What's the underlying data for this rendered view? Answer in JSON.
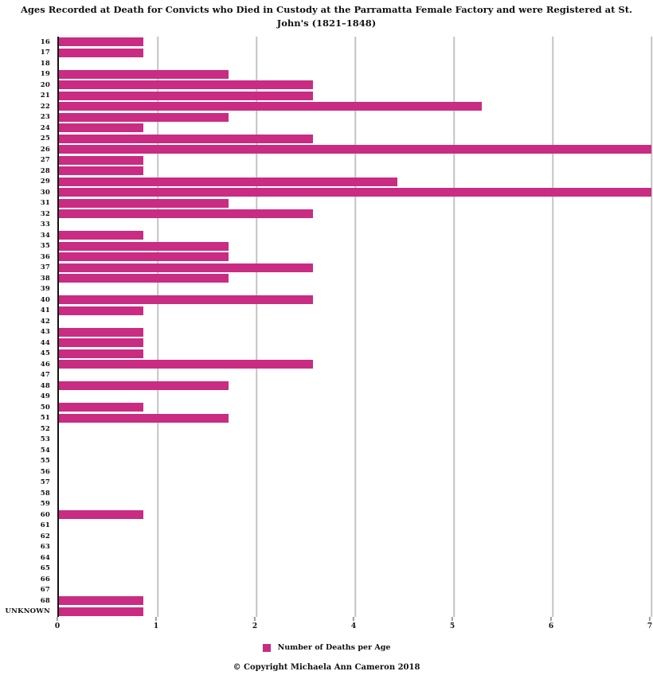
{
  "header": {
    "title_line1": "Ages Recorded at Death for Convicts who Died in Custody at the Parramatta Female Factory and were Registered at St.",
    "title_line2": "John's (1821–1848)"
  },
  "chart_data": {
    "type": "bar",
    "orientation": "horizontal",
    "title": "Ages Recorded at Death for Convicts who Died in Custody at the Parramatta Female Factory and were Registered at St. John's (1821–1848)",
    "series_name": "Number of Deaths per Age",
    "categories": [
      "16",
      "17",
      "18",
      "19",
      "20",
      "21",
      "22",
      "23",
      "24",
      "25",
      "26",
      "27",
      "28",
      "29",
      "30",
      "31",
      "32",
      "33",
      "34",
      "35",
      "36",
      "37",
      "38",
      "39",
      "40",
      "41",
      "42",
      "43",
      "44",
      "45",
      "46",
      "47",
      "48",
      "49",
      "50",
      "51",
      "52",
      "53",
      "54",
      "55",
      "56",
      "57",
      "58",
      "59",
      "60",
      "61",
      "62",
      "63",
      "64",
      "65",
      "66",
      "67",
      "68",
      "UNKNOWN"
    ],
    "values": [
      1,
      1,
      0,
      2,
      3,
      3,
      5,
      2,
      1,
      3,
      7,
      1,
      1,
      4,
      7,
      2,
      3,
      0,
      1,
      2,
      2,
      3,
      2,
      0,
      3,
      1,
      0,
      1,
      1,
      1,
      3,
      0,
      2,
      0,
      1,
      2,
      0,
      0,
      0,
      0,
      0,
      0,
      0,
      0,
      1,
      0,
      0,
      0,
      0,
      0,
      0,
      0,
      1,
      1
    ],
    "xlim": [
      0,
      7
    ],
    "xtick_labels": [
      "0",
      "1",
      "2",
      "4",
      "5",
      "6",
      "7"
    ],
    "grid": "vertical-gridlines",
    "legend_position": "bottom"
  },
  "legend": {
    "label": "Number of Deaths per Age"
  },
  "footer": {
    "copyright": "© Copyright Michaela Ann Cameron 2018"
  },
  "colors": {
    "bar": "#C92C82",
    "gridline": "#C4C4C4",
    "axis": "#111111",
    "text": "#111111"
  }
}
